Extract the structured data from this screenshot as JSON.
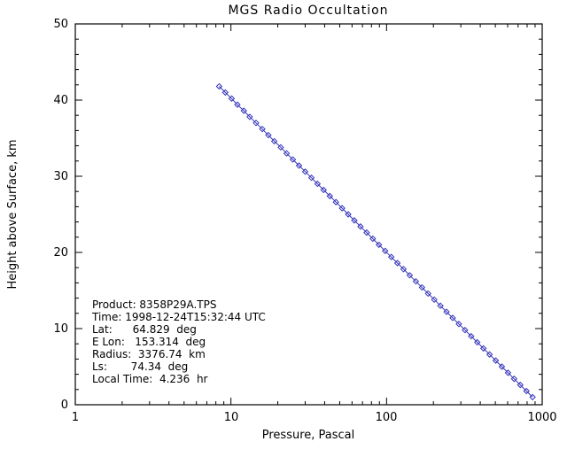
{
  "title": "MGS Radio Occultation",
  "axes": {
    "x": {
      "label": "Pressure, Pascal",
      "scale": "log",
      "min": 1,
      "max": 1000,
      "tick_labels": [
        "1",
        "10",
        "100",
        "1000"
      ]
    },
    "y": {
      "label": "Height above Surface, km",
      "scale": "linear",
      "min": 0,
      "max": 50,
      "tick_labels": [
        "0",
        "10",
        "20",
        "30",
        "40",
        "50"
      ]
    }
  },
  "annotation": {
    "lines": [
      "Product: 8358P29A.TPS",
      "Time: 1998-12-24T15:32:44 UTC",
      "Lat:      64.829  deg",
      "E Lon:   153.314  deg",
      "Radius:  3376.74  km",
      "Ls:       74.34  deg",
      "Local Time:  4.236  hr"
    ]
  },
  "colors": {
    "series": "#3333bb",
    "axis": "#000000",
    "background": "#ffffff"
  },
  "chart_data": {
    "type": "line",
    "title": "MGS Radio Occultation",
    "xlabel": "Pressure, Pascal",
    "ylabel": "Height above Surface, km",
    "xscale": "log",
    "xlim": [
      1,
      1000
    ],
    "ylim": [
      0,
      50
    ],
    "grid": false,
    "legend": "none",
    "marker": "open-diamond",
    "series": [
      {
        "name": "height_vs_pressure",
        "pressure_pa": [
          8.4,
          9.2,
          10.1,
          11.0,
          12.1,
          13.2,
          14.5,
          15.9,
          17.4,
          19.0,
          20.9,
          22.8,
          25.0,
          27.4,
          30.0,
          32.9,
          36.0,
          39.4,
          43.2,
          47.3,
          51.8,
          56.7,
          62.1,
          68.0,
          74.5,
          81.6,
          89.3,
          97.9,
          107.2,
          117.4,
          128.5,
          140.8,
          154.2,
          168.9,
          184.9,
          202.5,
          221.8,
          242.9,
          266.0,
          291.4,
          319.1,
          349.5,
          382.7,
          419.2,
          459.1,
          502.8,
          550.6,
          603.0,
          660.4,
          723.2,
          792.0,
          867.4
        ],
        "height_km": [
          41.8,
          41.0,
          40.2,
          39.4,
          38.6,
          37.8,
          37.0,
          36.2,
          35.4,
          34.6,
          33.8,
          33.0,
          32.2,
          31.4,
          30.6,
          29.8,
          29.0,
          28.2,
          27.4,
          26.6,
          25.8,
          25.0,
          24.2,
          23.4,
          22.6,
          21.8,
          21.0,
          20.2,
          19.4,
          18.6,
          17.8,
          17.0,
          16.2,
          15.4,
          14.6,
          13.8,
          13.0,
          12.2,
          11.4,
          10.6,
          9.8,
          9.0,
          8.2,
          7.4,
          6.6,
          5.8,
          5.0,
          4.2,
          3.4,
          2.6,
          1.8,
          1.0
        ]
      }
    ],
    "annotations": [
      "Product: 8358P29A.TPS",
      "Time: 1998-12-24T15:32:44 UTC",
      "Lat:      64.829  deg",
      "E Lon:   153.314  deg",
      "Radius:  3376.74  km",
      "Ls:       74.34  deg",
      "Local Time:  4.236  hr"
    ]
  }
}
